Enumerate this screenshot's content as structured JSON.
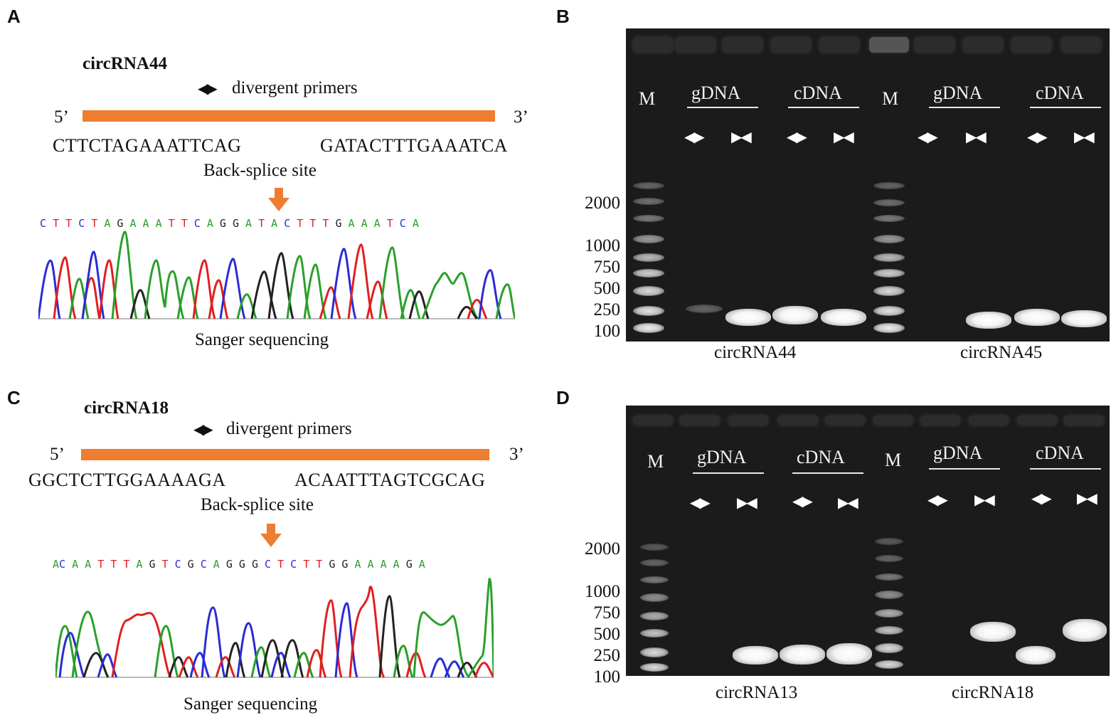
{
  "panels": {
    "A": {
      "letter": "A",
      "title": "circRNA44",
      "primers_label": "divergent  primers",
      "five_prime": "5’",
      "three_prime": "3’",
      "seq_left": "CTTCTAGAAATTCAG",
      "seq_right": "GATACTTTGAAATCA",
      "splice_label": "Back-splice  site",
      "chromatogram_letters": "C T T C T A G A A A T T C A G G A T A C T T T G A A A T C A",
      "caption": "Sanger  sequencing"
    },
    "B": {
      "letter": "B",
      "marker": "M",
      "marker2": "M",
      "g1": "gDNA",
      "c1": "cDNA",
      "g2": "gDNA",
      "c2": "cDNA",
      "primer_div": "◀▶",
      "primer_conv": "▶◀",
      "ladder": [
        "2000",
        "1000",
        "750",
        "500",
        "250",
        "100"
      ],
      "label_left": "circRNA44",
      "label_right": "circRNA45"
    },
    "C": {
      "letter": "C",
      "title": "circRNA18",
      "primers_label": "divergent  primers",
      "five_prime": "5’",
      "three_prime": "3’",
      "seq_left": "GGCTCTTGGAAAAGA",
      "seq_right": "ACAATTTAGTCGCAG",
      "splice_label": "Back-splice  site",
      "chromatogram_letters": "A C A A T T T A G T C G C A G G G C T C T T G G A A A A G A",
      "caption": "Sanger  sequencing"
    },
    "D": {
      "letter": "D",
      "marker": "M",
      "marker2": "M",
      "g1": "gDNA",
      "c1": "cDNA",
      "g2": "gDNA",
      "c2": "cDNA",
      "primer_div": "◀▶",
      "primer_conv": "▶◀",
      "ladder": [
        "2000",
        "1000",
        "750",
        "500",
        "250",
        "100"
      ],
      "label_left": "circRNA13",
      "label_right": "circRNA18"
    }
  },
  "colors": {
    "bar": "#ed7d31",
    "A": "#2aa02a",
    "C": "#2b2bd6",
    "G": "#222222",
    "T": "#e02020"
  }
}
